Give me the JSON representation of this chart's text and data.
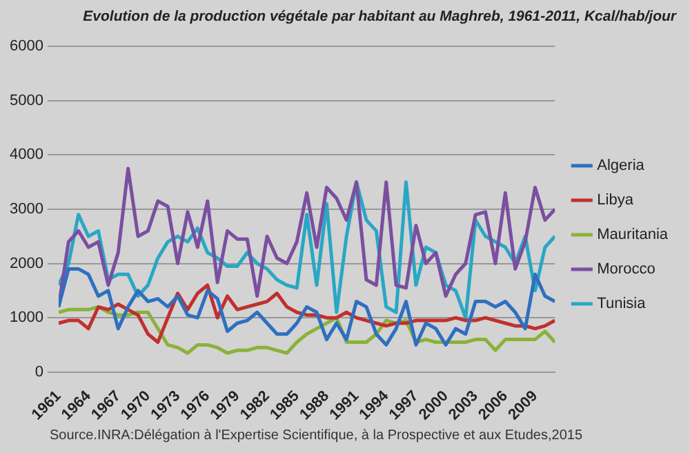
{
  "chart_data": {
    "type": "line",
    "title": "Evolution de la production végétale par habitant au Maghreb, 1961-2011, Kcal/hab/jour",
    "annotations": [
      "Source.INRA:Délégation à l'Expertise Scientifique, à la Prospective et aux Etudes,2015"
    ],
    "x": [
      1961,
      1962,
      1963,
      1964,
      1965,
      1966,
      1967,
      1968,
      1969,
      1970,
      1971,
      1972,
      1973,
      1974,
      1975,
      1976,
      1977,
      1978,
      1979,
      1980,
      1981,
      1982,
      1983,
      1984,
      1985,
      1986,
      1987,
      1988,
      1989,
      1990,
      1991,
      1992,
      1993,
      1994,
      1995,
      1996,
      1997,
      1998,
      1999,
      2000,
      2001,
      2002,
      2003,
      2004,
      2005,
      2006,
      2007,
      2008,
      2009,
      2010,
      2011
    ],
    "xlim": [
      1961,
      2011
    ],
    "xticks": [
      1961,
      1964,
      1967,
      1970,
      1973,
      1976,
      1979,
      1982,
      1985,
      1988,
      1991,
      1994,
      1997,
      2000,
      2003,
      2006,
      2009
    ],
    "ylim": [
      0,
      6000
    ],
    "yticks": [
      0,
      1000,
      2000,
      3000,
      4000,
      5000,
      6000
    ],
    "grid": "y",
    "legend": "right",
    "marker": "none",
    "line_style": "solid",
    "series": [
      {
        "name": "Algeria",
        "color": "#2e6fc0",
        "values": [
          1200,
          1900,
          1900,
          1800,
          1400,
          1500,
          800,
          1200,
          1500,
          1300,
          1350,
          1200,
          1400,
          1050,
          1000,
          1500,
          1350,
          750,
          900,
          950,
          1100,
          900,
          700,
          700,
          900,
          1200,
          1100,
          600,
          900,
          600,
          1300,
          1200,
          700,
          500,
          800,
          1300,
          500,
          900,
          800,
          500,
          800,
          700,
          1300,
          1300,
          1200,
          1300,
          1100,
          800,
          1800,
          1400,
          1300
        ]
      },
      {
        "name": "Libya",
        "color": "#c0302e",
        "values": [
          900,
          950,
          950,
          800,
          1200,
          1150,
          1250,
          1150,
          1050,
          700,
          550,
          1000,
          1450,
          1150,
          1450,
          1600,
          1000,
          1400,
          1150,
          1200,
          1250,
          1300,
          1450,
          1200,
          1100,
          1050,
          1050,
          1000,
          1000,
          1100,
          1000,
          950,
          900,
          850,
          900,
          900,
          950,
          950,
          950,
          950,
          1000,
          950,
          950,
          1000,
          950,
          900,
          850,
          850,
          800,
          850,
          950
        ]
      },
      {
        "name": "Mauritania",
        "color": "#8ab23a",
        "values": [
          1100,
          1150,
          1150,
          1150,
          1200,
          1100,
          1050,
          1050,
          1100,
          1100,
          800,
          500,
          450,
          350,
          500,
          500,
          450,
          350,
          400,
          400,
          450,
          450,
          400,
          350,
          550,
          700,
          800,
          900,
          1000,
          550,
          550,
          550,
          700,
          950,
          900,
          950,
          550,
          600,
          550,
          550,
          550,
          550,
          600,
          600,
          400,
          600,
          600,
          600,
          600,
          750,
          550
        ]
      },
      {
        "name": "Morocco",
        "color": "#7a4fa0",
        "values": [
          1200,
          2400,
          2600,
          2300,
          2400,
          1600,
          2200,
          3750,
          2500,
          2600,
          3150,
          3050,
          2000,
          2950,
          2300,
          3150,
          1650,
          2600,
          2450,
          2450,
          1400,
          2500,
          2100,
          2000,
          2400,
          3300,
          2300,
          3400,
          3200,
          2800,
          3500,
          1700,
          1600,
          3500,
          1600,
          1550,
          2700,
          2000,
          2200,
          1400,
          1800,
          2000,
          2900,
          2950,
          2000,
          3300,
          1900,
          2400,
          3400,
          2800,
          3000
        ]
      },
      {
        "name": "Tunisia",
        "color": "#29a7c4",
        "values": [
          1600,
          2000,
          2900,
          2500,
          2600,
          1700,
          1800,
          1800,
          1400,
          1600,
          2100,
          2400,
          2500,
          2400,
          2650,
          2200,
          2100,
          1950,
          1950,
          2200,
          2000,
          1900,
          1700,
          1600,
          1550,
          2900,
          1600,
          3100,
          1100,
          2500,
          3500,
          2800,
          2600,
          1200,
          1100,
          3500,
          1600,
          2300,
          2200,
          1600,
          1500,
          1000,
          2800,
          2500,
          2400,
          2300,
          2000,
          2500,
          1500,
          2300,
          2500
        ]
      }
    ]
  }
}
